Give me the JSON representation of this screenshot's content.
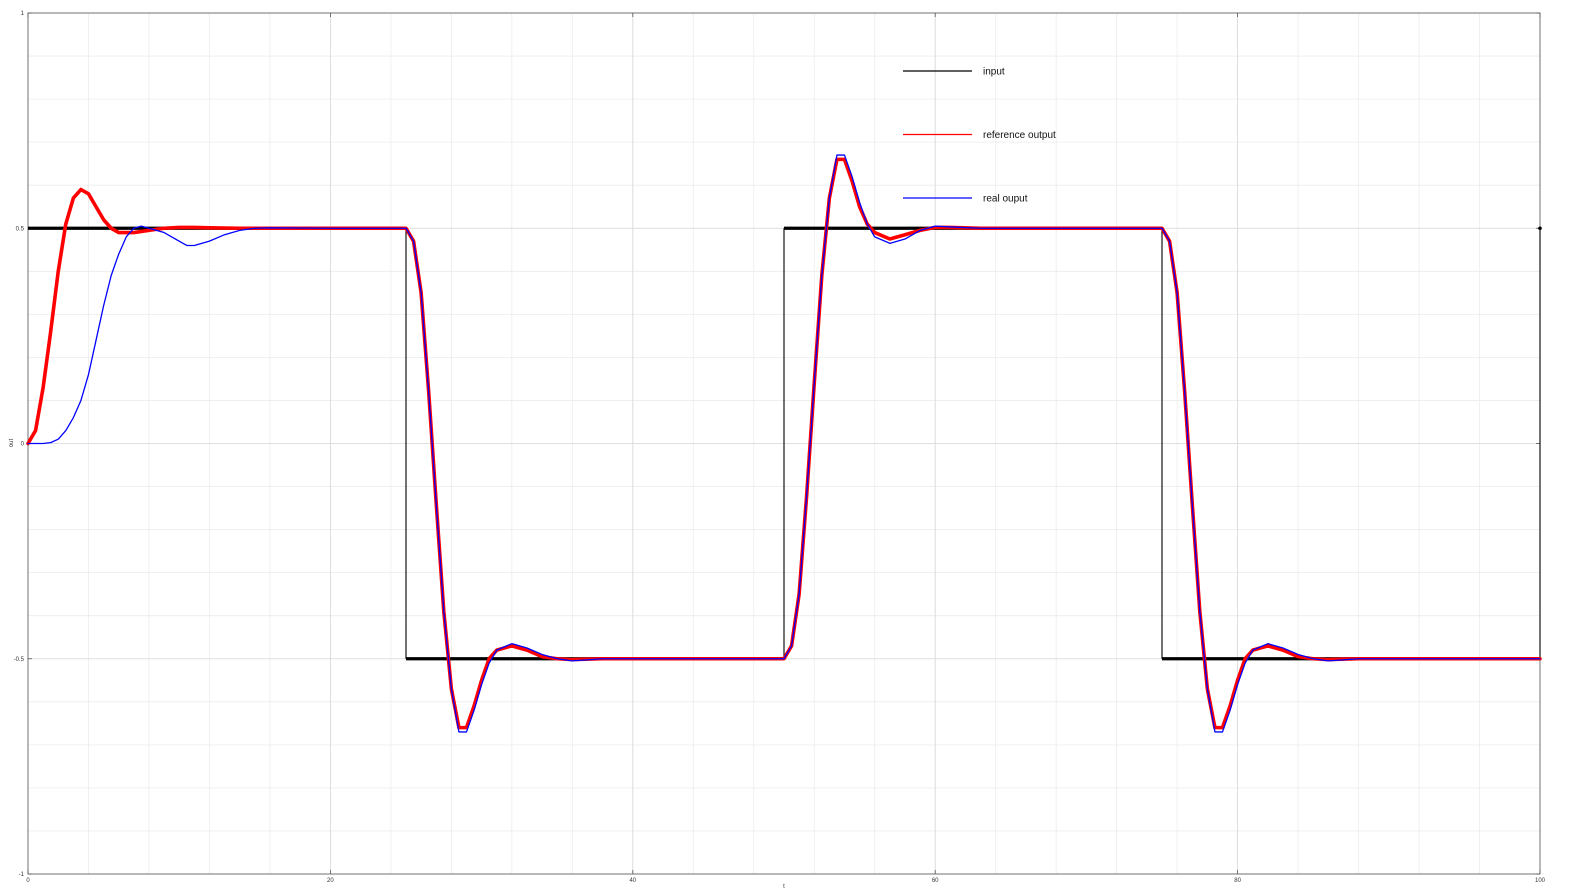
{
  "chart_data": {
    "type": "line",
    "title": "",
    "xlabel": "t",
    "ylabel": "out",
    "xlim": [
      0,
      100
    ],
    "ylim": [
      -1,
      1
    ],
    "x_ticks": [
      0,
      20,
      40,
      60,
      80,
      100
    ],
    "y_ticks": [
      -1,
      -0.5,
      0,
      0.5,
      1
    ],
    "x_tick_labels": [
      "0",
      "20",
      "40",
      "60",
      "80",
      "100"
    ],
    "y_tick_labels": [
      "-1",
      "-0.5",
      "0",
      "0.5",
      "1"
    ],
    "grid": true,
    "legend_position": "top-right",
    "series": [
      {
        "name": "input",
        "color": "#000000",
        "x": [
          0,
          25,
          25,
          50,
          50,
          75,
          75,
          100,
          100
        ],
        "y": [
          0.5,
          0.5,
          -0.5,
          -0.5,
          0.5,
          0.5,
          -0.5,
          -0.5,
          0.5
        ]
      },
      {
        "name": "reference output",
        "color": "#ff0000",
        "x": [
          0,
          0.5,
          1,
          1.5,
          2,
          2.5,
          3,
          3.5,
          4,
          4.5,
          5,
          5.5,
          6,
          6.5,
          7,
          8,
          9,
          10,
          11,
          12,
          14,
          16,
          20,
          25,
          25.5,
          26,
          26.5,
          27,
          27.5,
          28,
          28.5,
          29,
          29.5,
          30,
          30.5,
          31,
          32,
          33,
          34,
          35,
          36,
          38,
          40,
          45,
          50,
          50.5,
          51,
          51.5,
          52,
          52.5,
          53,
          53.5,
          54,
          54.5,
          55,
          55.5,
          56,
          57,
          58,
          59,
          60,
          61,
          63,
          65,
          70,
          75,
          75.5,
          76,
          76.5,
          77,
          77.5,
          78,
          78.5,
          79,
          79.5,
          80,
          80.5,
          81,
          82,
          83,
          84,
          85,
          86,
          88,
          90,
          95,
          100
        ],
        "y": [
          0,
          0.03,
          0.13,
          0.26,
          0.4,
          0.51,
          0.57,
          0.59,
          0.58,
          0.55,
          0.52,
          0.5,
          0.49,
          0.49,
          0.49,
          0.495,
          0.5,
          0.502,
          0.502,
          0.501,
          0.5,
          0.5,
          0.5,
          0.5,
          0.47,
          0.35,
          0.12,
          -0.14,
          -0.39,
          -0.57,
          -0.66,
          -0.66,
          -0.61,
          -0.55,
          -0.5,
          -0.48,
          -0.47,
          -0.48,
          -0.495,
          -0.5,
          -0.502,
          -0.5,
          -0.5,
          -0.5,
          -0.5,
          -0.47,
          -0.35,
          -0.12,
          0.14,
          0.39,
          0.57,
          0.66,
          0.66,
          0.61,
          0.55,
          0.51,
          0.49,
          0.475,
          0.485,
          0.495,
          0.502,
          0.502,
          0.5,
          0.5,
          0.5,
          0.5,
          0.47,
          0.35,
          0.12,
          -0.14,
          -0.39,
          -0.57,
          -0.66,
          -0.66,
          -0.61,
          -0.55,
          -0.5,
          -0.48,
          -0.47,
          -0.48,
          -0.495,
          -0.5,
          -0.502,
          -0.5,
          -0.5,
          -0.5,
          -0.5
        ]
      },
      {
        "name": "real ouput",
        "color": "#0000ff",
        "x": [
          0,
          1,
          1.5,
          2,
          2.5,
          3,
          3.5,
          4,
          4.5,
          5,
          5.5,
          6,
          6.5,
          7,
          7.5,
          8,
          9,
          10,
          10.5,
          11,
          12,
          13,
          14,
          15,
          16,
          20,
          25,
          25.5,
          26,
          26.5,
          27,
          27.5,
          28,
          28.5,
          29,
          29.5,
          30,
          30.5,
          31,
          32,
          33,
          34,
          35,
          36,
          38,
          40,
          45,
          50,
          50.5,
          51,
          51.5,
          52,
          52.5,
          53,
          53.5,
          54,
          54.5,
          55,
          55.5,
          56,
          57,
          58,
          59,
          60,
          61,
          63,
          65,
          70,
          75,
          75.5,
          76,
          76.5,
          77,
          77.5,
          78,
          78.5,
          79,
          79.5,
          80,
          80.5,
          81,
          82,
          83,
          84,
          85,
          86,
          88,
          90,
          95,
          100
        ],
        "y": [
          0,
          0,
          0.002,
          0.01,
          0.03,
          0.06,
          0.1,
          0.16,
          0.24,
          0.32,
          0.39,
          0.44,
          0.48,
          0.5,
          0.505,
          0.5,
          0.49,
          0.47,
          0.46,
          0.46,
          0.47,
          0.485,
          0.495,
          0.5,
          0.501,
          0.5,
          0.5,
          0.47,
          0.35,
          0.12,
          -0.14,
          -0.39,
          -0.57,
          -0.67,
          -0.67,
          -0.62,
          -0.56,
          -0.51,
          -0.48,
          -0.465,
          -0.475,
          -0.49,
          -0.5,
          -0.505,
          -0.5,
          -0.5,
          -0.5,
          -0.5,
          -0.47,
          -0.35,
          -0.12,
          0.14,
          0.39,
          0.57,
          0.67,
          0.67,
          0.62,
          0.56,
          0.51,
          0.48,
          0.465,
          0.475,
          0.495,
          0.505,
          0.503,
          0.5,
          0.5,
          0.5,
          0.5,
          0.47,
          0.35,
          0.12,
          -0.14,
          -0.39,
          -0.57,
          -0.67,
          -0.67,
          -0.62,
          -0.56,
          -0.51,
          -0.48,
          -0.465,
          -0.475,
          -0.49,
          -0.5,
          -0.505,
          -0.5,
          -0.5,
          -0.5,
          -0.5
        ]
      }
    ]
  }
}
